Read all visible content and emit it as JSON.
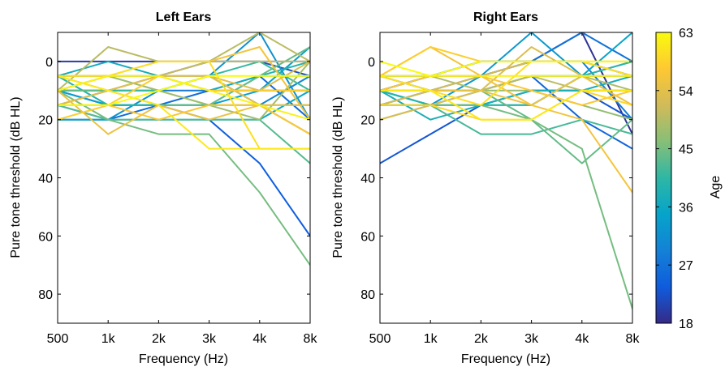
{
  "chart_data": [
    {
      "type": "line",
      "title": "Left Ears",
      "xlabel": "Frequency (Hz)",
      "ylabel": "Pure tone threshold (dB HL)",
      "x_categories": [
        "500",
        "1k",
        "2k",
        "3k",
        "4k",
        "8k"
      ],
      "y_ticks": [
        "0",
        "20",
        "40",
        "60",
        "80"
      ],
      "ylim": [
        -10,
        90
      ],
      "y_direction": "reversed",
      "color_by": "age",
      "series": [
        {
          "age": 20,
          "values": [
            0,
            0,
            0,
            0,
            0,
            0
          ]
        },
        {
          "age": 22,
          "values": [
            15,
            10,
            5,
            0,
            0,
            5
          ]
        },
        {
          "age": 24,
          "values": [
            10,
            15,
            15,
            20,
            35,
            60
          ]
        },
        {
          "age": 26,
          "values": [
            20,
            20,
            15,
            10,
            5,
            20
          ]
        },
        {
          "age": 28,
          "values": [
            10,
            10,
            10,
            10,
            10,
            10
          ]
        },
        {
          "age": 30,
          "values": [
            5,
            5,
            5,
            5,
            15,
            5
          ]
        },
        {
          "age": 32,
          "values": [
            15,
            20,
            10,
            5,
            -10,
            20
          ]
        },
        {
          "age": 34,
          "values": [
            10,
            15,
            15,
            15,
            10,
            -5
          ]
        },
        {
          "age": 36,
          "values": [
            20,
            20,
            20,
            20,
            20,
            10
          ]
        },
        {
          "age": 37,
          "values": [
            5,
            0,
            5,
            10,
            5,
            5
          ]
        },
        {
          "age": 39,
          "values": [
            5,
            15,
            15,
            15,
            5,
            0
          ]
        },
        {
          "age": 40,
          "values": [
            15,
            15,
            15,
            15,
            15,
            25
          ]
        },
        {
          "age": 41,
          "values": [
            10,
            10,
            10,
            5,
            0,
            10
          ]
        },
        {
          "age": 43,
          "values": [
            15,
            20,
            20,
            20,
            20,
            35
          ]
        },
        {
          "age": 44,
          "values": [
            10,
            10,
            15,
            15,
            5,
            -5
          ]
        },
        {
          "age": 45,
          "values": [
            10,
            20,
            25,
            25,
            45,
            70
          ]
        },
        {
          "age": 46,
          "values": [
            5,
            5,
            10,
            15,
            15,
            15
          ]
        },
        {
          "age": 48,
          "values": [
            10,
            5,
            10,
            15,
            20,
            0
          ]
        },
        {
          "age": 50,
          "values": [
            10,
            -5,
            0,
            0,
            -10,
            0
          ]
        },
        {
          "age": 51,
          "values": [
            5,
            10,
            5,
            0,
            0,
            0
          ]
        },
        {
          "age": 53,
          "values": [
            10,
            5,
            5,
            5,
            10,
            0
          ]
        },
        {
          "age": 54,
          "values": [
            15,
            10,
            5,
            5,
            15,
            15
          ]
        },
        {
          "age": 55,
          "values": [
            10,
            25,
            15,
            20,
            15,
            25
          ]
        },
        {
          "age": 56,
          "values": [
            5,
            5,
            0,
            0,
            -5,
            20
          ]
        },
        {
          "age": 57,
          "values": [
            15,
            15,
            20,
            15,
            15,
            25
          ]
        },
        {
          "age": 58,
          "values": [
            20,
            15,
            5,
            10,
            10,
            10
          ]
        },
        {
          "age": 60,
          "values": [
            5,
            5,
            0,
            0,
            30,
            30
          ]
        },
        {
          "age": 61,
          "values": [
            5,
            10,
            15,
            30,
            30,
            30
          ]
        },
        {
          "age": 62,
          "values": [
            10,
            5,
            5,
            10,
            15,
            20
          ]
        },
        {
          "age": 63,
          "values": [
            15,
            15,
            10,
            5,
            5,
            5
          ]
        }
      ]
    },
    {
      "type": "line",
      "title": "Right Ears",
      "xlabel": "Frequency (Hz)",
      "ylabel": "Pure tone threshold (dB HL)",
      "x_categories": [
        "500",
        "1k",
        "2k",
        "3k",
        "4k",
        "8k"
      ],
      "y_ticks": [
        "0",
        "20",
        "40",
        "60",
        "80"
      ],
      "ylim": [
        -10,
        90
      ],
      "y_direction": "reversed",
      "color_by": "age",
      "series": [
        {
          "age": 19,
          "values": [
            10,
            5,
            5,
            0,
            -10,
            25
          ]
        },
        {
          "age": 21,
          "values": [
            5,
            5,
            0,
            0,
            0,
            5
          ]
        },
        {
          "age": 23,
          "values": [
            35,
            25,
            15,
            10,
            10,
            20
          ]
        },
        {
          "age": 25,
          "values": [
            15,
            10,
            10,
            5,
            20,
            30
          ]
        },
        {
          "age": 27,
          "values": [
            5,
            10,
            5,
            0,
            -10,
            0
          ]
        },
        {
          "age": 29,
          "values": [
            10,
            5,
            0,
            0,
            0,
            20
          ]
        },
        {
          "age": 31,
          "values": [
            10,
            15,
            10,
            5,
            5,
            5
          ]
        },
        {
          "age": 33,
          "values": [
            15,
            15,
            5,
            -10,
            5,
            0
          ]
        },
        {
          "age": 35,
          "values": [
            10,
            15,
            15,
            15,
            5,
            -10
          ]
        },
        {
          "age": 37,
          "values": [
            15,
            15,
            15,
            10,
            10,
            5
          ]
        },
        {
          "age": 38,
          "values": [
            10,
            20,
            15,
            10,
            10,
            10
          ]
        },
        {
          "age": 40,
          "values": [
            10,
            15,
            15,
            15,
            5,
            0
          ]
        },
        {
          "age": 42,
          "values": [
            20,
            15,
            25,
            25,
            20,
            25
          ]
        },
        {
          "age": 44,
          "values": [
            15,
            10,
            10,
            20,
            35,
            20
          ]
        },
        {
          "age": 45,
          "values": [
            15,
            15,
            15,
            20,
            30,
            85
          ]
        },
        {
          "age": 47,
          "values": [
            10,
            10,
            10,
            10,
            15,
            20
          ]
        },
        {
          "age": 49,
          "values": [
            5,
            5,
            10,
            5,
            5,
            10
          ]
        },
        {
          "age": 50,
          "values": [
            10,
            10,
            10,
            5,
            10,
            10
          ]
        },
        {
          "age": 52,
          "values": [
            15,
            10,
            5,
            0,
            0,
            0
          ]
        },
        {
          "age": 53,
          "values": [
            20,
            15,
            10,
            -5,
            5,
            5
          ]
        },
        {
          "age": 55,
          "values": [
            10,
            10,
            10,
            15,
            5,
            15
          ]
        },
        {
          "age": 56,
          "values": [
            5,
            -5,
            5,
            15,
            20,
            45
          ]
        },
        {
          "age": 57,
          "values": [
            10,
            5,
            5,
            10,
            15,
            10
          ]
        },
        {
          "age": 58,
          "values": [
            5,
            -5,
            0,
            0,
            0,
            0
          ]
        },
        {
          "age": 59,
          "values": [
            15,
            15,
            20,
            20,
            10,
            15
          ]
        },
        {
          "age": 60,
          "values": [
            5,
            10,
            15,
            0,
            0,
            5
          ]
        },
        {
          "age": 61,
          "values": [
            10,
            10,
            20,
            20,
            10,
            10
          ]
        },
        {
          "age": 62,
          "values": [
            5,
            5,
            5,
            5,
            5,
            5
          ]
        },
        {
          "age": 63,
          "values": [
            0,
            5,
            0,
            0,
            0,
            0
          ]
        }
      ]
    }
  ],
  "colorbar": {
    "label": "Age",
    "min": 18,
    "max": 63,
    "ticks": [
      "18",
      "27",
      "36",
      "45",
      "54",
      "63"
    ],
    "colormap": "parula",
    "color_stops": [
      "#352a87",
      "#0f5cdd",
      "#1481d6",
      "#06a4ca",
      "#2eb7a4",
      "#87bf77",
      "#d1bb59",
      "#fec832",
      "#f9fb0e"
    ]
  }
}
